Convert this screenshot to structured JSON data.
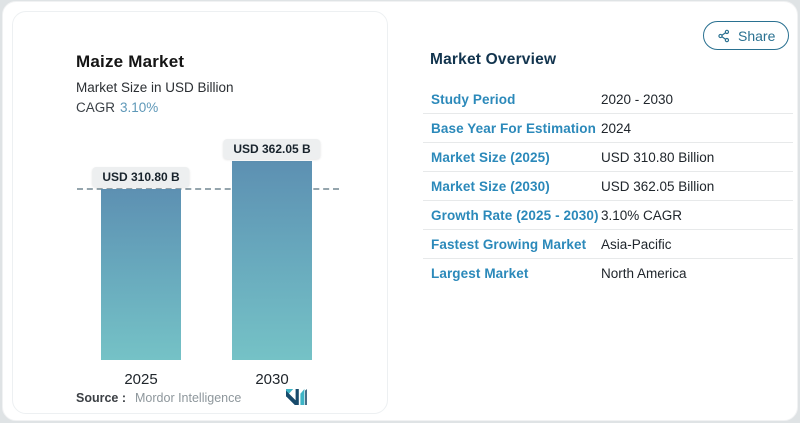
{
  "theme": {
    "accent_blue": "#2b89ba",
    "navy": "#12344e",
    "share_color": "#2a7191",
    "bar_gradient_top": "#5d90b2",
    "bar_gradient_bottom": "#75c2c6",
    "pill_bg": "#edeff0",
    "dashed_line": "#95a5ad"
  },
  "chart_card": {
    "title": "Maize Market",
    "subtitle": "Market Size in USD Billion",
    "cagr_label": "CAGR",
    "cagr_value": "3.10%",
    "source_label": "Source :",
    "source_value": "Mordor Intelligence",
    "logo_name": "mordor-intelligence-logo"
  },
  "chart_data": {
    "type": "bar",
    "title": "Maize Market",
    "subtitle": "Market Size in USD Billion",
    "unit": "USD Billion",
    "categories": [
      "2025",
      "2030"
    ],
    "values": [
      310.8,
      362.05
    ],
    "bar_labels": [
      "USD 310.80 B",
      "USD 362.05 B"
    ],
    "cagr": "3.10%",
    "dashed_line_at": 310.8,
    "ylim": [
      0,
      400
    ],
    "grid": false,
    "legend": false
  },
  "overview": {
    "title": "Market Overview",
    "share_label": "Share",
    "rows": [
      {
        "label": "Study Period",
        "value": "2020 - 2030"
      },
      {
        "label": "Base Year For Estimation",
        "value": "2024"
      },
      {
        "label": "Market Size (2025)",
        "value": "USD 310.80 Billion"
      },
      {
        "label": "Market Size (2030)",
        "value": "USD 362.05 Billion"
      },
      {
        "label": "Growth Rate (2025 - 2030)",
        "value": "3.10% CAGR"
      },
      {
        "label": "Fastest Growing Market",
        "value": "Asia-Pacific"
      },
      {
        "label": "Largest Market",
        "value": "North America"
      }
    ]
  }
}
